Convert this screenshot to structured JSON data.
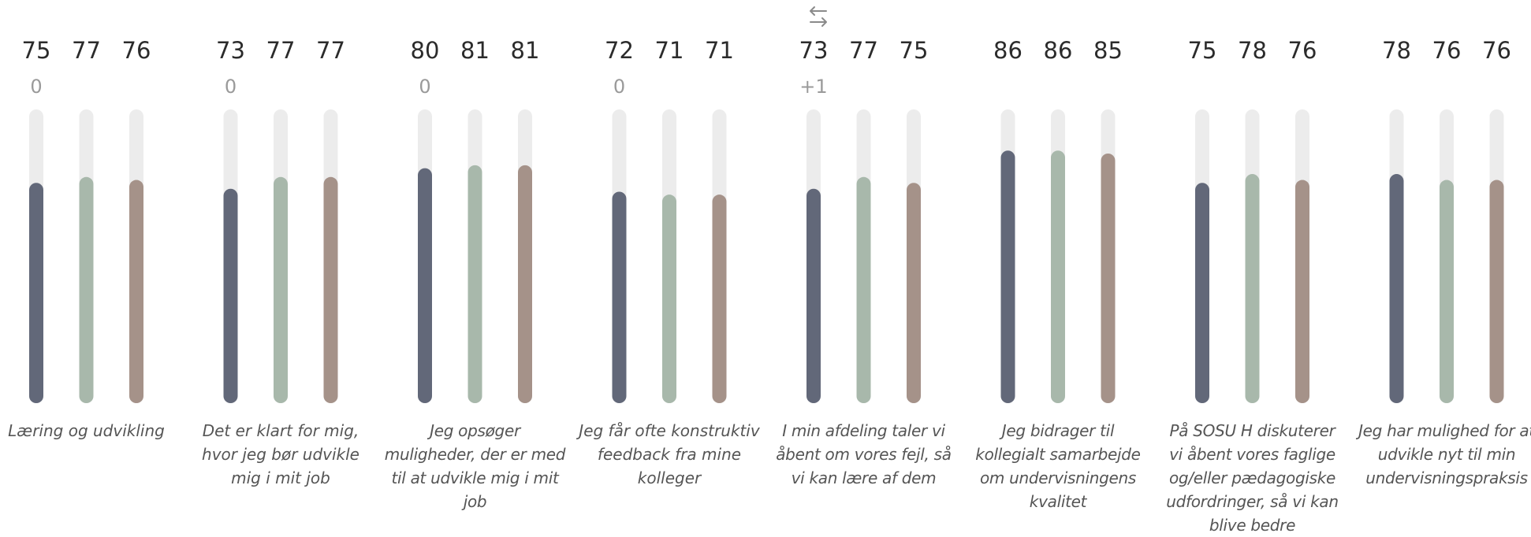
{
  "toolbar": {
    "toggle_icon": "swap-arrows-icon"
  },
  "colors": {
    "track": "#ececec",
    "series": [
      "#626879",
      "#a8b8ab",
      "#a59289"
    ],
    "value_text": "#2b2b2b",
    "change_text": "#9a9a9a",
    "label_text": "#555555"
  },
  "chart_data": {
    "type": "bar",
    "orientation": "vertical",
    "ylim": [
      0,
      100
    ],
    "grid": false,
    "legend": "none",
    "categories": [
      "Læring og udvikling",
      "Det er klart for mig, hvor jeg bør udvikle mig i mit job",
      "Jeg opsøger muligheder, der er med til at udvikle mig i mit job",
      "Jeg får ofte konstruktiv feedback fra mine kolleger",
      "I min afdeling taler vi åbent om vores fejl, så vi kan lære af dem",
      "Jeg bidrager til kollegialt samarbejde om undervisningens kvalitet",
      "På SOSU H diskuterer vi åbent vores faglige og/eller pædagogiske udfordringer, så vi kan blive bedre",
      "Jeg har mulighed for at udvikle nyt til min undervisningspraksis"
    ],
    "series": [
      {
        "values": [
          75,
          73,
          80,
          72,
          73,
          86,
          75,
          78
        ]
      },
      {
        "values": [
          77,
          77,
          81,
          71,
          77,
          86,
          78,
          76
        ]
      },
      {
        "values": [
          76,
          77,
          81,
          71,
          75,
          85,
          76,
          76
        ]
      }
    ],
    "changes": [
      "0",
      "0",
      "0",
      "0",
      "+1",
      "",
      "",
      ""
    ]
  }
}
